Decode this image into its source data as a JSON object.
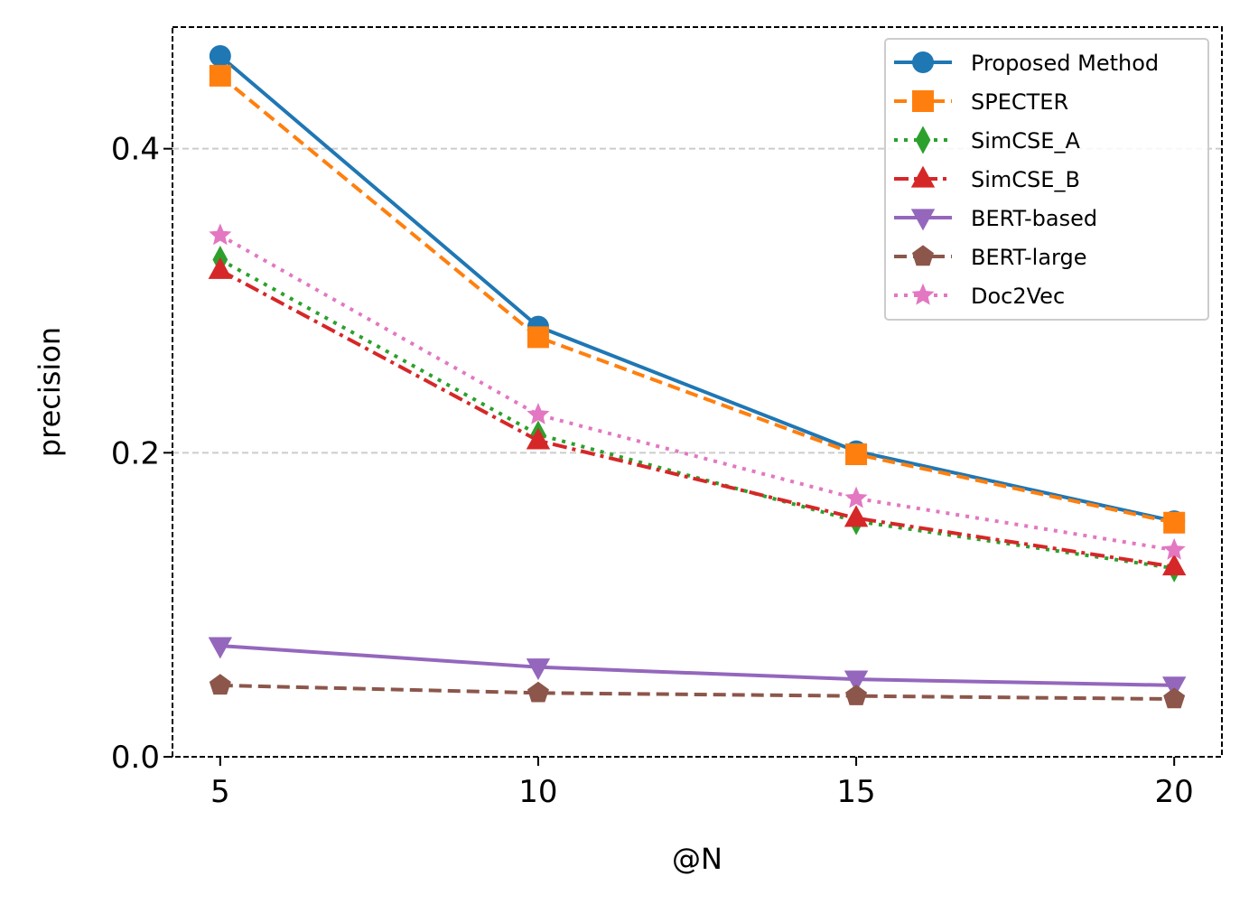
{
  "chart_data": {
    "type": "line",
    "title": "",
    "xlabel": "@N",
    "ylabel": "precision",
    "x": [
      5,
      10,
      15,
      20
    ],
    "x_ticks": [
      "5",
      "10",
      "15",
      "20"
    ],
    "y_ticks": [
      "0.0",
      "0.2",
      "0.4"
    ],
    "xlim": [
      4.25,
      20.75
    ],
    "ylim": [
      0.0,
      0.48
    ],
    "grid": "horizontal dashed",
    "legend_position": "top-right",
    "series": [
      {
        "name": "Proposed Method",
        "values": [
          0.461,
          0.283,
          0.201,
          0.155
        ],
        "color": "#1f77b4",
        "marker": "circle",
        "dash": "solid"
      },
      {
        "name": "SPECTER",
        "values": [
          0.448,
          0.276,
          0.199,
          0.154
        ],
        "color": "#ff7f0e",
        "marker": "square",
        "dash": "dashed"
      },
      {
        "name": "SimCSE_A",
        "values": [
          0.327,
          0.212,
          0.155,
          0.124
        ],
        "color": "#2ca02c",
        "marker": "diamond",
        "dash": "dotted"
      },
      {
        "name": "SimCSE_B",
        "values": [
          0.32,
          0.208,
          0.157,
          0.125
        ],
        "color": "#d62728",
        "marker": "triangle-up",
        "dash": "dashdot"
      },
      {
        "name": "BERT-based",
        "values": [
          0.073,
          0.059,
          0.051,
          0.047
        ],
        "color": "#9467bd",
        "marker": "triangle-down",
        "dash": "solid"
      },
      {
        "name": "BERT-large",
        "values": [
          0.047,
          0.042,
          0.04,
          0.038
        ],
        "color": "#8c564b",
        "marker": "pentagon",
        "dash": "dashed"
      },
      {
        "name": "Doc2Vec",
        "values": [
          0.343,
          0.225,
          0.17,
          0.136
        ],
        "color": "#e377c2",
        "marker": "star",
        "dash": "dotted"
      }
    ]
  }
}
